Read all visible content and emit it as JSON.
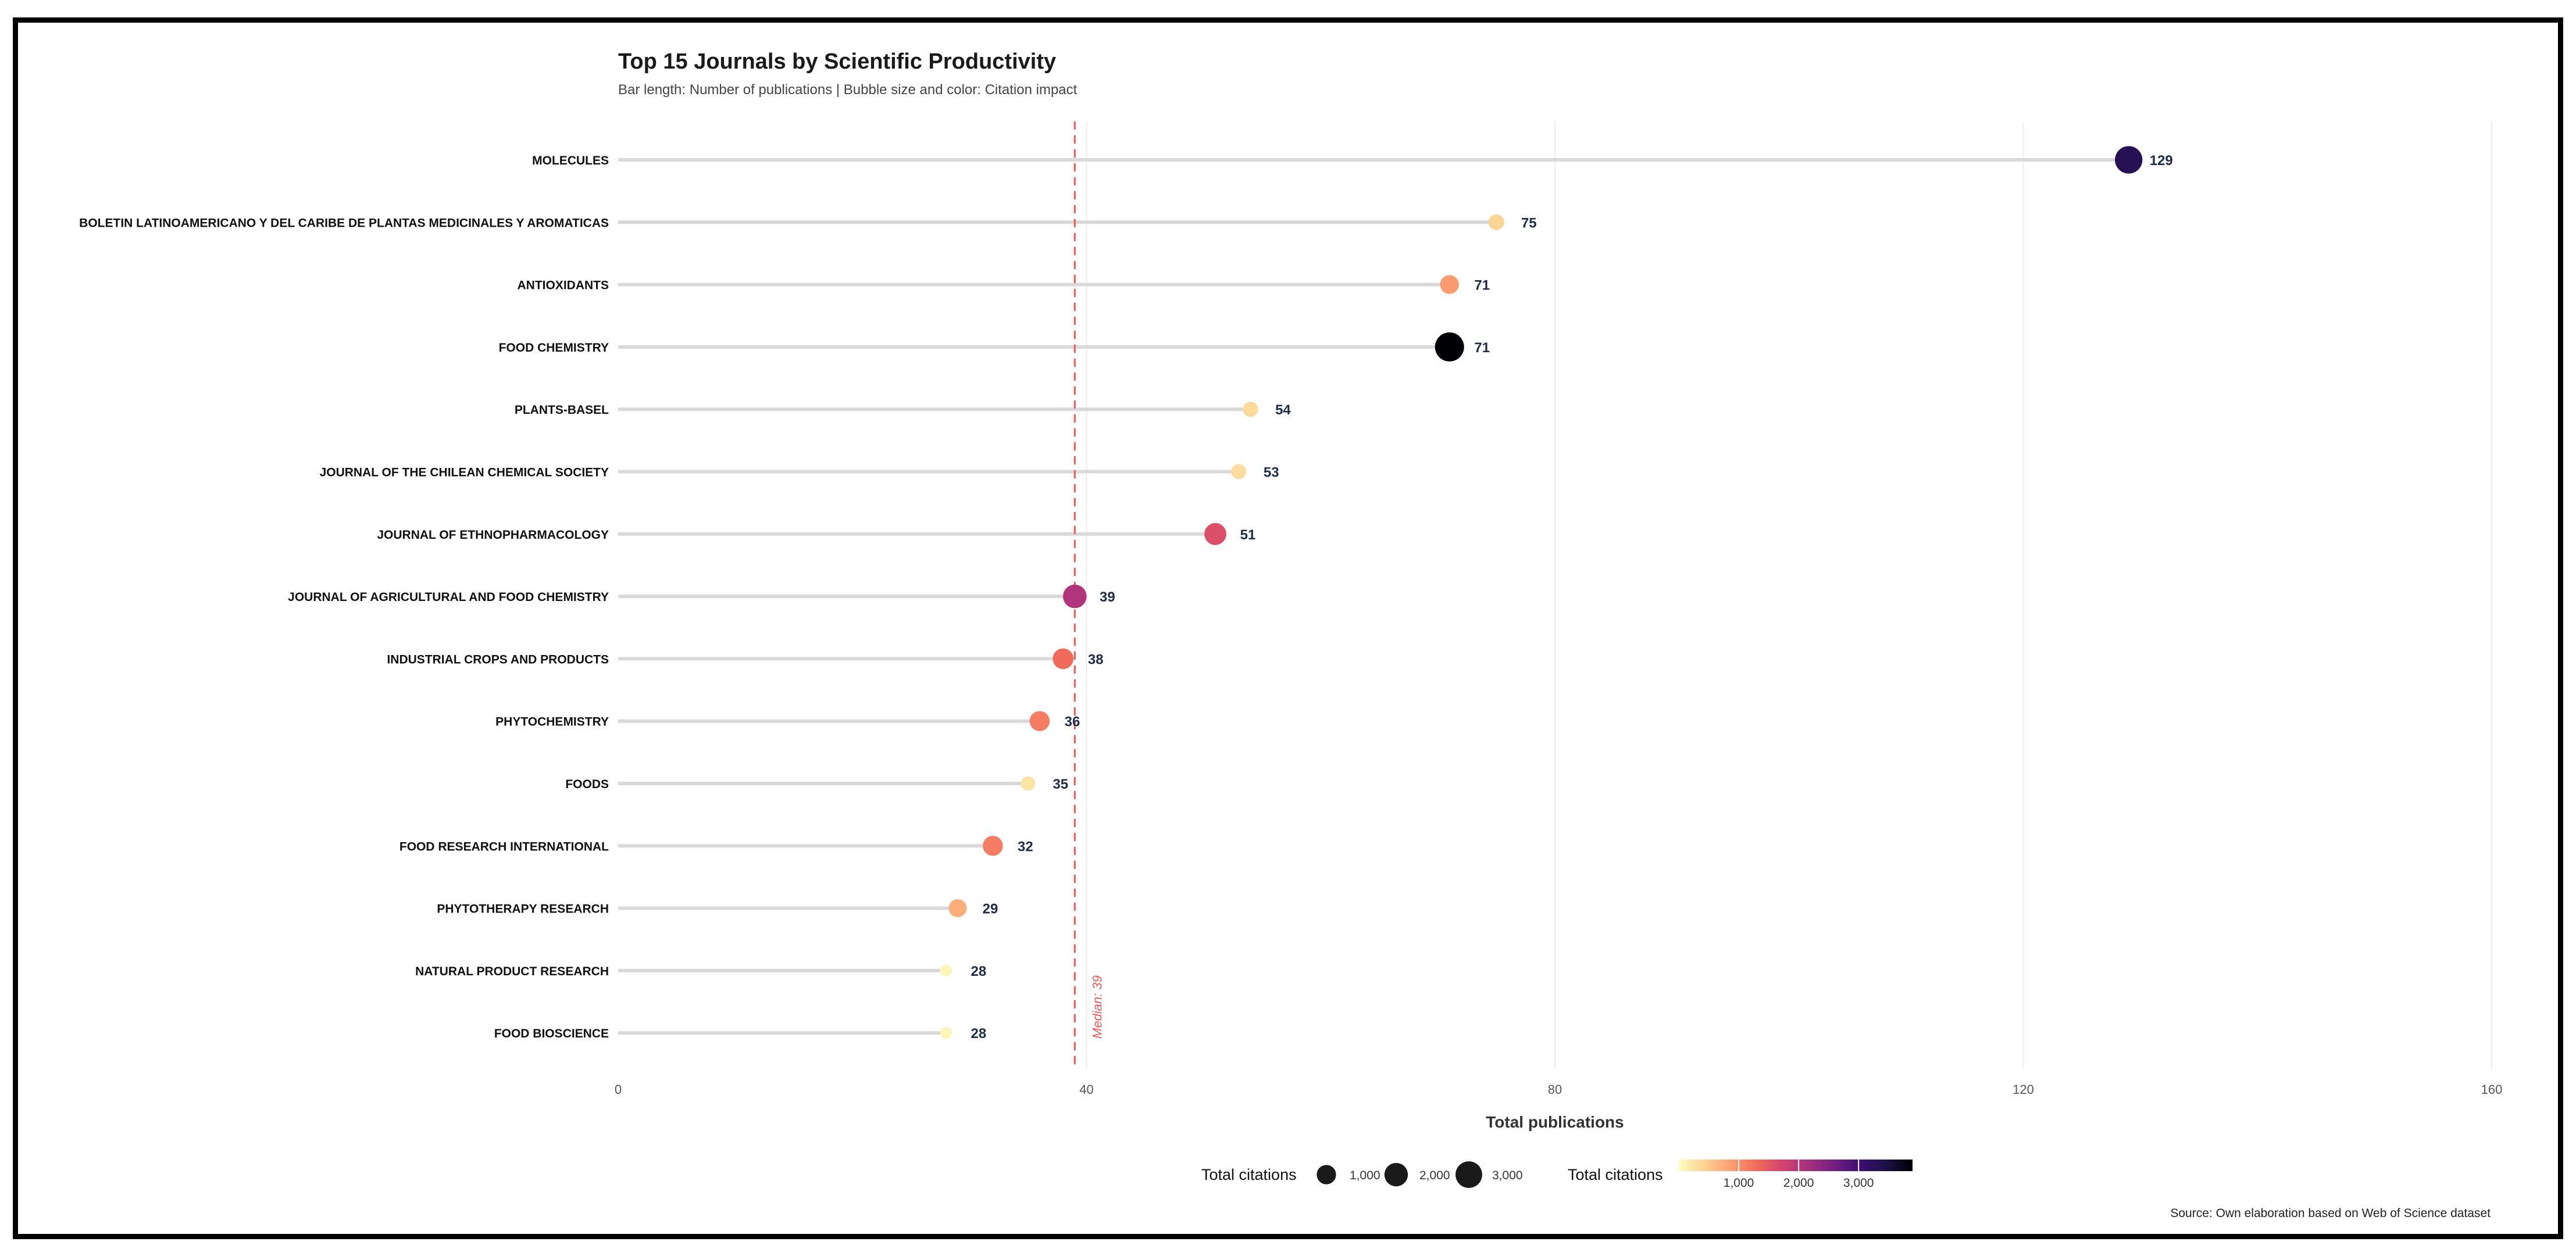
{
  "chart_data": {
    "type": "lollipop",
    "title": "Top 15 Journals by Scientific Productivity",
    "subtitle": "Bar length: Number of publications | Bubble size and color: Citation impact",
    "xlabel": "Total publications",
    "ylabel": "",
    "xlim": [
      0,
      160
    ],
    "x_ticks": [
      0,
      40,
      80,
      120,
      160
    ],
    "grid": "vertical major",
    "source": "Source: Own elaboration based on Web of Science dataset",
    "categories": [
      "MOLECULES",
      "BOLETIN LATINOAMERICANO Y DEL CARIBE DE PLANTAS MEDICINALES Y AROMATICAS",
      "ANTIOXIDANTS",
      "FOOD CHEMISTRY",
      "PLANTS-BASEL",
      "JOURNAL OF THE CHILEAN CHEMICAL SOCIETY",
      "JOURNAL OF ETHNOPHARMACOLOGY",
      "JOURNAL OF AGRICULTURAL AND FOOD CHEMISTRY",
      "INDUSTRIAL CROPS AND PRODUCTS",
      "PHYTOCHEMISTRY",
      "FOODS",
      "FOOD RESEARCH INTERNATIONAL",
      "PHYTOTHERAPY RESEARCH",
      "NATURAL PRODUCT RESEARCH",
      "FOOD BIOSCIENCE"
    ],
    "publications": [
      129,
      75,
      71,
      71,
      54,
      53,
      51,
      39,
      38,
      36,
      35,
      32,
      29,
      28,
      28
    ],
    "citations": [
      3300,
      400,
      900,
      3900,
      350,
      320,
      1600,
      2050,
      1300,
      1150,
      250,
      1150,
      750,
      60,
      60
    ],
    "median": {
      "value": 39,
      "label": "Median: 39",
      "color": "#ef5a5a"
    },
    "value_label_color": "#1f2d4a",
    "legend": {
      "position": "bottom",
      "size_title": "Total citations",
      "size_breaks": [
        1000,
        2000,
        3000
      ],
      "size_labels": [
        "1,000",
        "2,000",
        "3,000"
      ],
      "color_title": "Total citations",
      "color_breaks": [
        1000,
        2000,
        3000
      ],
      "color_labels": [
        "1,000",
        "2,000",
        "3,000"
      ],
      "citation_range": [
        0,
        3900
      ]
    },
    "colors": {
      "palette": [
        "#fcfdbf",
        "#fcd291",
        "#fc9f72",
        "#f06b5b",
        "#d3436e",
        "#a3307e",
        "#721f81",
        "#3b0f70",
        "#1c1044",
        "#000004"
      ],
      "segment": "#d9d9d9",
      "grid": "#ececec"
    }
  }
}
